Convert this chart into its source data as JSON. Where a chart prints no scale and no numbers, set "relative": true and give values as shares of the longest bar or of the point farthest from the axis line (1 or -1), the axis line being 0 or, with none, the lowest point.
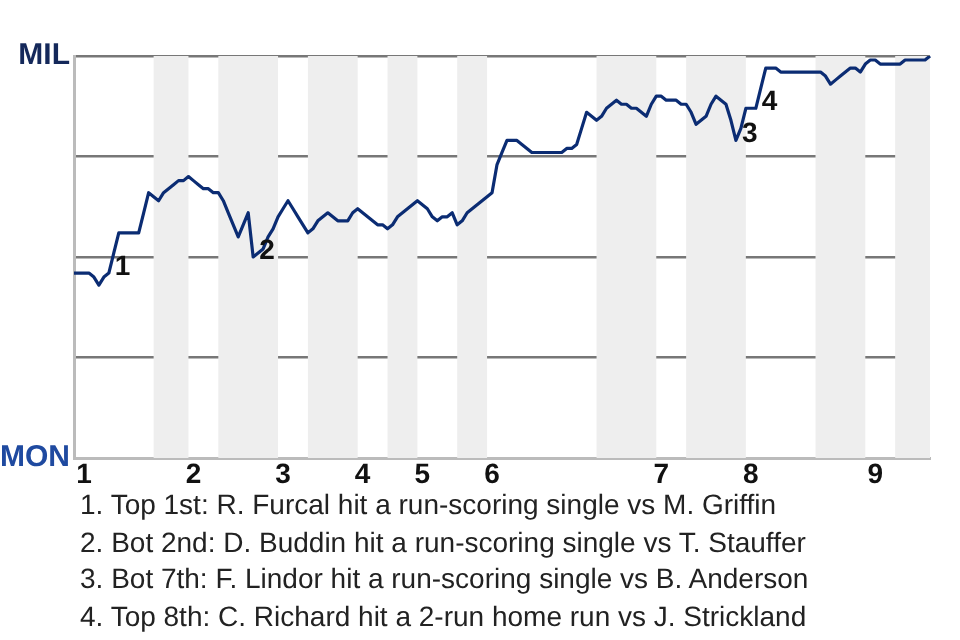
{
  "chart_data": {
    "type": "line",
    "relative": true,
    "categories": [
      null,
      null,
      "1",
      null,
      null,
      null,
      null,
      null,
      null,
      null,
      null,
      null,
      null,
      null,
      null,
      null,
      null,
      null,
      null,
      null,
      null,
      null,
      null,
      null,
      "2",
      null,
      null,
      null,
      null,
      null,
      null,
      null,
      null,
      null,
      null,
      null,
      null,
      null,
      null,
      null,
      null,
      null,
      "3",
      null,
      null,
      null,
      null,
      null,
      null,
      null,
      null,
      null,
      null,
      null,
      null,
      null,
      null,
      null,
      "4",
      null,
      null,
      null,
      null,
      null,
      null,
      null,
      null,
      null,
      null,
      null,
      "5",
      null,
      null,
      null,
      null,
      null,
      null,
      null,
      null,
      null,
      null,
      null,
      null,
      null,
      "6",
      null,
      null,
      null,
      null,
      null,
      null,
      null,
      null,
      null,
      null,
      null,
      null,
      null,
      null,
      null,
      null,
      null,
      null,
      null,
      null,
      null,
      null,
      null,
      null,
      null,
      null,
      null,
      null,
      null,
      null,
      null,
      null,
      null,
      "7",
      null,
      null,
      null,
      null,
      null,
      null,
      null,
      null,
      null,
      null,
      null,
      null,
      null,
      null,
      null,
      null,
      null,
      "8",
      null,
      null,
      null,
      null,
      null,
      null,
      null,
      null,
      null,
      null,
      null,
      null,
      null,
      null,
      null,
      null,
      null,
      null,
      null,
      null,
      null,
      null,
      null,
      null,
      "9",
      null,
      null,
      null,
      null,
      null,
      null,
      null,
      null,
      null,
      null,
      null
    ],
    "values": [
      0.46,
      0.46,
      0.46,
      0.46,
      0.45,
      0.43,
      0.45,
      0.46,
      0.51,
      0.56,
      0.56,
      0.56,
      0.56,
      0.56,
      0.61,
      0.66,
      0.65,
      0.64,
      0.66,
      0.67,
      0.68,
      0.69,
      0.69,
      0.7,
      0.69,
      0.68,
      0.67,
      0.67,
      0.66,
      0.66,
      0.64,
      0.61,
      0.58,
      0.55,
      0.58,
      0.61,
      0.5,
      0.51,
      0.52,
      0.55,
      0.57,
      0.6,
      0.62,
      0.64,
      0.62,
      0.6,
      0.58,
      0.56,
      0.57,
      0.59,
      0.6,
      0.61,
      0.6,
      0.59,
      0.59,
      0.59,
      0.61,
      0.62,
      0.61,
      0.6,
      0.59,
      0.58,
      0.58,
      0.57,
      0.58,
      0.6,
      0.61,
      0.62,
      0.63,
      0.64,
      0.63,
      0.62,
      0.6,
      0.59,
      0.6,
      0.6,
      0.61,
      0.58,
      0.59,
      0.61,
      0.62,
      0.63,
      0.64,
      0.65,
      0.66,
      0.73,
      0.76,
      0.79,
      0.79,
      0.79,
      0.78,
      0.77,
      0.76,
      0.76,
      0.76,
      0.76,
      0.76,
      0.76,
      0.76,
      0.77,
      0.77,
      0.78,
      0.82,
      0.86,
      0.85,
      0.84,
      0.85,
      0.87,
      0.88,
      0.89,
      0.88,
      0.88,
      0.87,
      0.87,
      0.86,
      0.85,
      0.88,
      0.9,
      0.9,
      0.89,
      0.89,
      0.89,
      0.88,
      0.88,
      0.86,
      0.83,
      0.84,
      0.85,
      0.88,
      0.9,
      0.89,
      0.88,
      0.84,
      0.79,
      0.82,
      0.87,
      0.87,
      0.87,
      0.92,
      0.97,
      0.97,
      0.97,
      0.96,
      0.96,
      0.96,
      0.96,
      0.96,
      0.96,
      0.96,
      0.96,
      0.96,
      0.95,
      0.93,
      0.94,
      0.95,
      0.96,
      0.97,
      0.97,
      0.96,
      0.98,
      0.99,
      0.99,
      0.98,
      0.98,
      0.98,
      0.98,
      0.98,
      0.99,
      0.99,
      0.99,
      0.99,
      0.99,
      1
    ],
    "color": "#0b2c73",
    "marker": "none",
    "grid": "y",
    "annotations": [
      "MIL",
      "MON",
      "1",
      "2",
      "3",
      "4",
      "1. Top 1st: R. Furcal hit a run-scoring single vs M. Griffin",
      "2. Bot 2nd: D. Buddin hit a run-scoring single vs T. Stauffer",
      "3. Bot 7th: F. Lindor hit a run-scoring single vs B. Anderson",
      "4. Top 8th: C. Richard hit a 2-run home run vs J. Strickland"
    ]
  }
}
